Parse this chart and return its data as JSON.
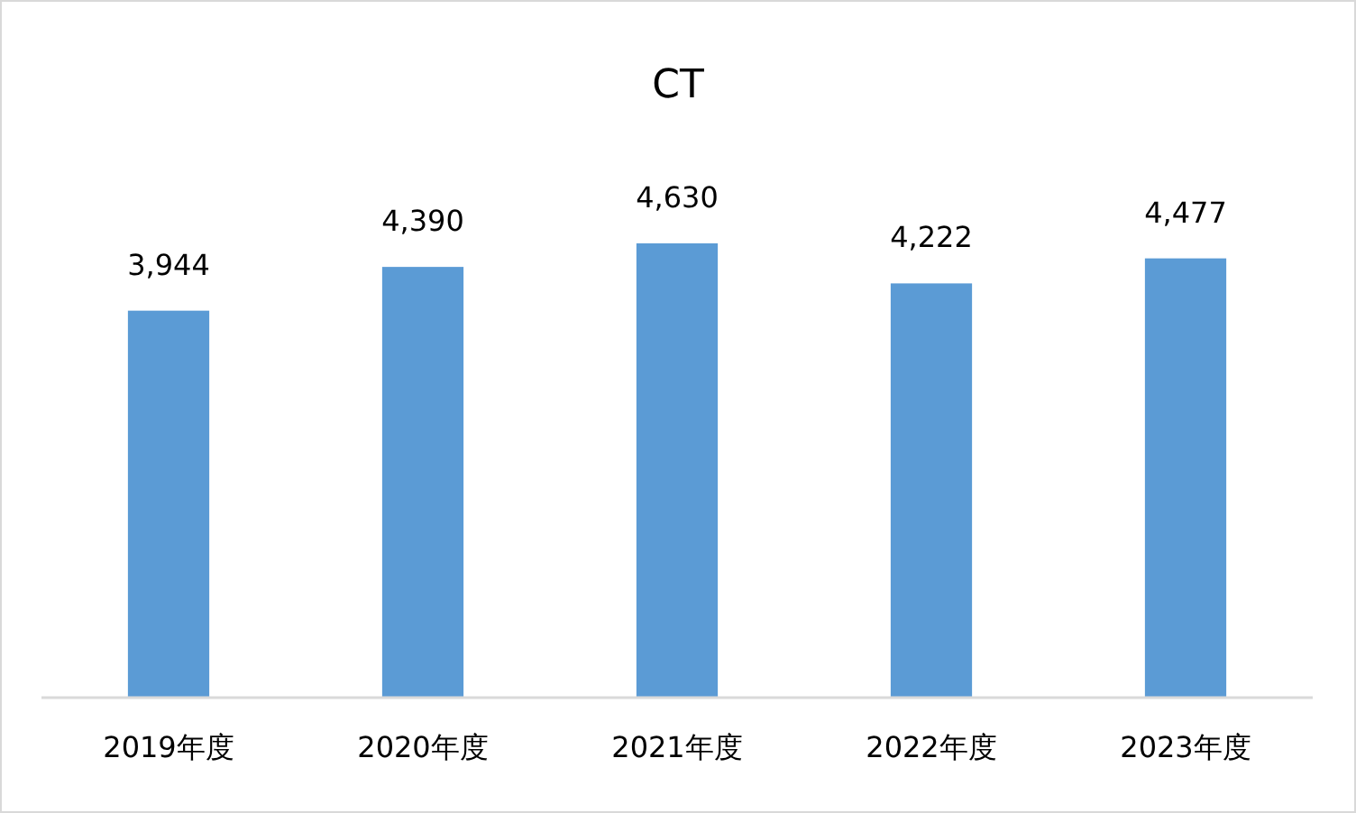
{
  "chart_data": {
    "type": "bar",
    "title": "CT",
    "categories": [
      "2019年度",
      "2020年度",
      "2021年度",
      "2022年度",
      "2023年度"
    ],
    "values": [
      3944,
      4390,
      4630,
      4222,
      4477
    ],
    "value_labels": [
      "3,944",
      "4,390",
      "4,630",
      "4,222",
      "4,477"
    ],
    "color": "#5b9bd5"
  }
}
